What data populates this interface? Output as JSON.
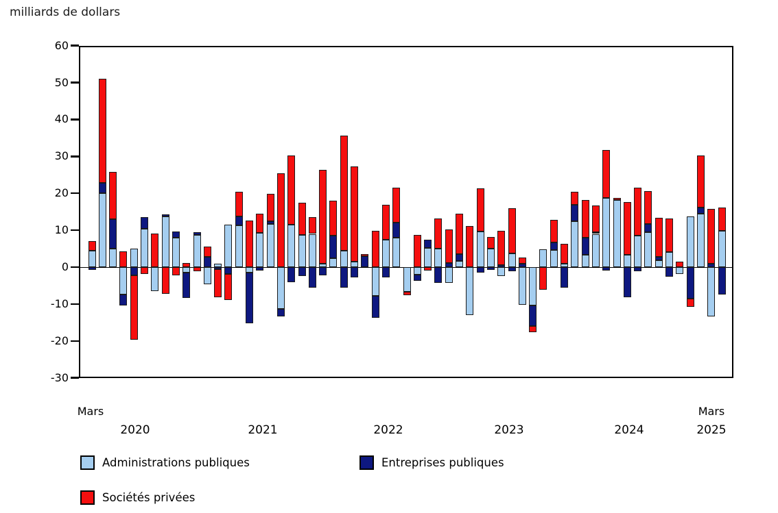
{
  "title": "milliards de dollars",
  "y_axis": {
    "ticks": [
      60,
      50,
      40,
      30,
      20,
      10,
      0,
      -10,
      -20,
      -30
    ]
  },
  "x_axis": {
    "left_month": "Mars",
    "years": [
      "2020",
      "2021",
      "2022",
      "2023",
      "2024"
    ],
    "right_month": "Mars",
    "right_year": "2025"
  },
  "legend": [
    {
      "label": "Administrations publiques",
      "color": "#A5CEF0"
    },
    {
      "label": "Entreprises publiques",
      "color": "#0E1880"
    },
    {
      "label": "Sociétés privées",
      "color": "#F50F0F"
    }
  ],
  "colors": {
    "admin": "#A5CEF0",
    "entreprises": "#0E1880",
    "societes": "#F50F0F",
    "bar_border": "#1a1a1a",
    "axis": "#000000"
  },
  "chart_data": {
    "type": "bar",
    "stacked": true,
    "title": "milliards de dollars",
    "ylabel": "milliards de dollars",
    "ylim": [
      -30,
      60
    ],
    "grid": false,
    "legend_position": "bottom",
    "x": [
      "2020-03",
      "2020-04",
      "2020-05",
      "2020-06",
      "2020-07",
      "2020-08",
      "2020-09",
      "2020-10",
      "2020-11",
      "2020-12",
      "2021-01",
      "2021-02",
      "2021-03",
      "2021-04",
      "2021-05",
      "2021-06",
      "2021-07",
      "2021-08",
      "2021-09",
      "2021-10",
      "2021-11",
      "2021-12",
      "2022-01",
      "2022-02",
      "2022-03",
      "2022-04",
      "2022-05",
      "2022-06",
      "2022-07",
      "2022-08",
      "2022-09",
      "2022-10",
      "2022-11",
      "2022-12",
      "2023-01",
      "2023-02",
      "2023-03",
      "2023-04",
      "2023-05",
      "2023-06",
      "2023-07",
      "2023-08",
      "2023-09",
      "2023-10",
      "2023-11",
      "2023-12",
      "2024-01",
      "2024-02",
      "2024-03",
      "2024-04",
      "2024-05",
      "2024-06",
      "2024-07",
      "2024-08",
      "2024-09",
      "2024-10",
      "2024-11",
      "2024-12",
      "2025-01",
      "2025-02",
      "2025-03"
    ],
    "series": [
      {
        "name": "Administrations publiques",
        "key": "admin",
        "color": "#A5CEF0",
        "values": [
          4.5,
          20.0,
          5.0,
          -7.4,
          5.0,
          10.3,
          -6.5,
          13.8,
          8.0,
          -1.5,
          8.7,
          -4.6,
          0.9,
          11.5,
          11.3,
          -1.5,
          9.2,
          11.6,
          -11.4,
          11.5,
          8.8,
          9.0,
          1.0,
          2.5,
          4.5,
          1.5,
          0,
          -7.8,
          7.5,
          8.0,
          -6.7,
          -2.1,
          5.2,
          5.0,
          -4.3,
          1.7,
          -13.0,
          9.6,
          5.0,
          -2.5,
          3.8,
          -10.2,
          -10.3,
          4.8,
          4.6,
          0.9,
          12.5,
          3.3,
          9.0,
          18.8,
          18.1,
          3.4,
          8.5,
          9.4,
          1.9,
          4.1,
          -1.9,
          13.7,
          14.5,
          -13.3,
          9.9
        ]
      },
      {
        "name": "Entreprises publiques",
        "key": "entreprises",
        "color": "#0E1880",
        "values": [
          -0.7,
          2.8,
          8.0,
          -3.0,
          -2.2,
          3.2,
          0,
          0.5,
          1.7,
          -6.9,
          0.7,
          2.8,
          -0.6,
          -1.9,
          2.5,
          -13.7,
          -0.9,
          0.8,
          -1.9,
          -4.0,
          -2.4,
          -5.5,
          -2.2,
          6.0,
          -5.6,
          -2.8,
          3.0,
          -6.0,
          -2.8,
          4.0,
          0,
          -1.7,
          2.2,
          -4.2,
          1.2,
          1.9,
          0,
          -1.5,
          -0.7,
          0.5,
          -1.2,
          0.9,
          -5.6,
          0,
          2.1,
          -5.5,
          4.3,
          4.7,
          0.5,
          -0.9,
          0,
          -8.2,
          -1.2,
          2.2,
          0.8,
          -2.6,
          0,
          -8.5,
          1.7,
          0.9,
          -7.4
        ]
      },
      {
        "name": "Sociétés privées",
        "key": "societes",
        "color": "#F50F0F",
        "values": [
          2.5,
          28.2,
          12.8,
          4.3,
          -17.5,
          -1.8,
          9.1,
          -7.3,
          -2.3,
          1.2,
          -1.2,
          2.8,
          -7.5,
          -7.1,
          6.6,
          12.7,
          5.2,
          7.4,
          25.5,
          18.8,
          8.6,
          4.6,
          25.3,
          9.5,
          31.2,
          25.8,
          0.5,
          9.8,
          9.3,
          9.5,
          -1.0,
          8.8,
          -0.9,
          8.2,
          9.0,
          10.9,
          11.1,
          11.8,
          3.1,
          9.4,
          12.1,
          1.7,
          -1.8,
          -6.2,
          6.1,
          5.4,
          3.6,
          10.1,
          7.2,
          13.0,
          0.6,
          14.2,
          13.0,
          9.0,
          10.6,
          9.0,
          1.4,
          -2.3,
          14.0,
          14.9,
          6.2
        ]
      }
    ]
  }
}
